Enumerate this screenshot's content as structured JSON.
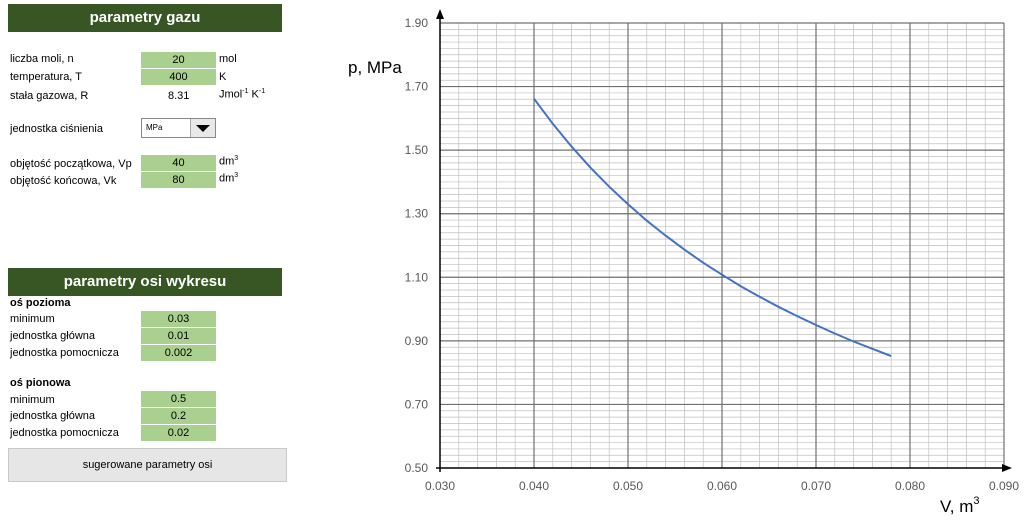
{
  "gas_panel": {
    "title": "parametry gazu",
    "moles": {
      "label": "liczba moli, n",
      "value": "20",
      "unit": "mol"
    },
    "temperature": {
      "label": "temperatura, T",
      "value": "400",
      "unit": "K"
    },
    "gas_constant": {
      "label": "stała gazowa, R",
      "value": "8.31",
      "unit_base": "Jmol",
      "unit_exp1": "-1",
      "unit_mid": " K",
      "unit_exp2": "-1"
    },
    "pressure_unit": {
      "label": "jednostka ciśnienia",
      "value": "MPa"
    },
    "v_start": {
      "label": "objętość początkowa, Vp",
      "value": "40",
      "unit_base": "dm",
      "unit_exp": "3"
    },
    "v_end": {
      "label": "objętość końcowa, Vk",
      "value": "80",
      "unit_base": "dm",
      "unit_exp": "3"
    }
  },
  "axis_panel": {
    "title": "parametry osi wykresu",
    "horizontal": {
      "heading": "oś pozioma",
      "minimum": {
        "label": "minimum",
        "value": "0.03"
      },
      "major": {
        "label": "jednostka główna",
        "value": "0.01"
      },
      "minor": {
        "label": "jednostka pomocnicza",
        "value": "0.002"
      }
    },
    "vertical": {
      "heading": "oś pionowa",
      "minimum": {
        "label": "minimum",
        "value": "0.5"
      },
      "major": {
        "label": "jednostka główna",
        "value": "0.2"
      },
      "minor": {
        "label": "jednostka pomocnicza",
        "value": "0.02"
      }
    },
    "suggest_button": "sugerowane parametry osi"
  },
  "colors": {
    "header_bg": "#375623",
    "input_bg": "#a9d08e",
    "curve": "#4472c4"
  },
  "chart_data": {
    "type": "line",
    "title": "",
    "xlabel_base": "V, m",
    "xlabel_exp": "3",
    "ylabel": "p, MPa",
    "xlim": [
      0.03,
      0.09
    ],
    "ylim": [
      0.5,
      1.9
    ],
    "x_major": 0.01,
    "x_minor": 0.002,
    "y_major": 0.2,
    "y_minor": 0.02,
    "x_ticks": [
      "0.030",
      "0.040",
      "0.050",
      "0.060",
      "0.070",
      "0.080",
      "0.090"
    ],
    "y_ticks": [
      "0.50",
      "0.70",
      "0.90",
      "1.10",
      "1.30",
      "1.50",
      "1.70",
      "1.90"
    ],
    "grid": true,
    "series": [
      {
        "x": [
          0.04,
          0.042,
          0.044,
          0.046,
          0.048,
          0.05,
          0.052,
          0.054,
          0.056,
          0.058,
          0.06,
          0.062,
          0.064,
          0.066,
          0.068,
          0.07,
          0.072,
          0.074,
          0.076,
          0.078
        ],
        "y": [
          1.662,
          1.583,
          1.511,
          1.445,
          1.385,
          1.33,
          1.278,
          1.231,
          1.187,
          1.146,
          1.108,
          1.072,
          1.039,
          1.007,
          0.978,
          0.95,
          0.923,
          0.898,
          0.875,
          0.852
        ]
      }
    ]
  }
}
